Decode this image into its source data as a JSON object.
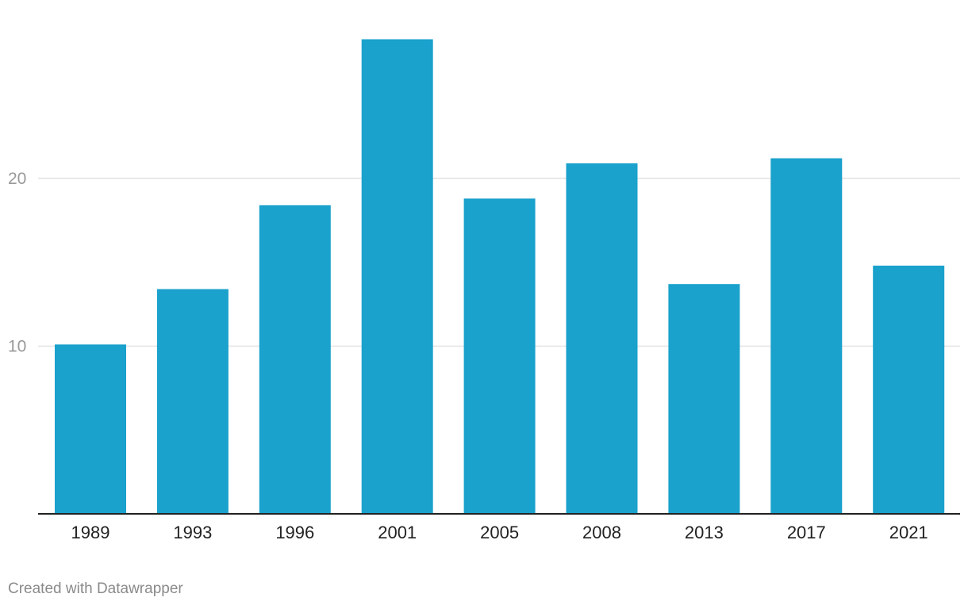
{
  "chart_data": {
    "type": "bar",
    "categories": [
      "1989",
      "1993",
      "1996",
      "2001",
      "2005",
      "2008",
      "2013",
      "2017",
      "2021"
    ],
    "values": [
      10.1,
      13.4,
      18.4,
      28.3,
      18.8,
      20.9,
      13.7,
      21.2,
      14.8
    ],
    "ylim": [
      0,
      30
    ],
    "y_ticks": [
      10,
      20
    ],
    "grid": true,
    "bar_color": "#1aa1cc",
    "gridline_color": "#e2e2e2",
    "baseline_color": "#222222",
    "tick_label_color": "#999999",
    "category_label_color": "#222222"
  },
  "footer": {
    "credit": "Created with Datawrapper"
  }
}
